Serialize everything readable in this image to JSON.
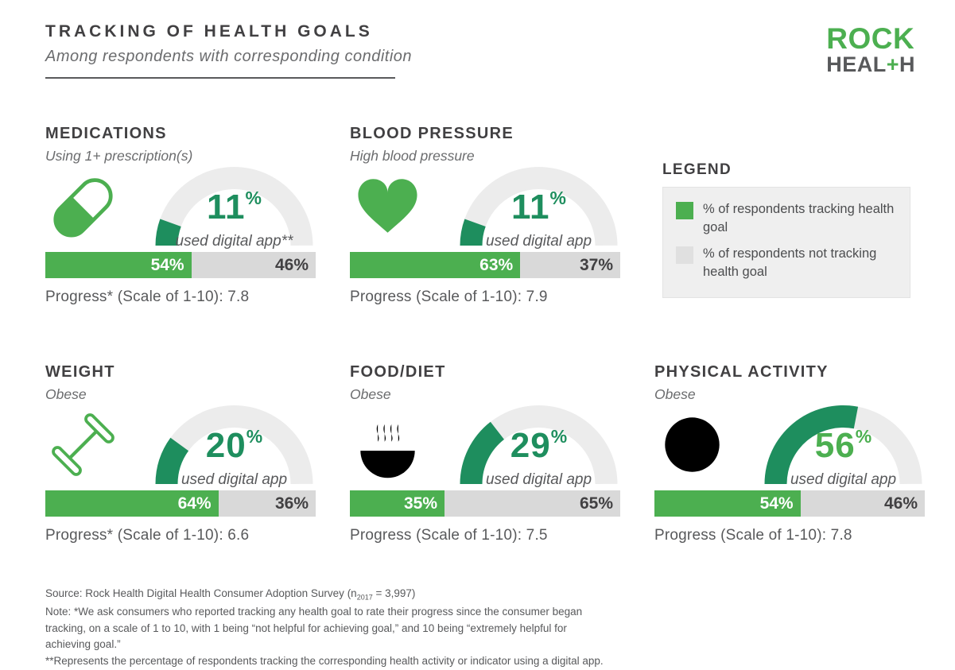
{
  "header": {
    "title": "TRACKING OF HEALTH GOALS",
    "subtitle": "Among respondents with corresponding condition"
  },
  "logo": {
    "top": "ROCK",
    "bottom_pre": "HEAL",
    "bottom_plus": "+",
    "bottom_post": "H"
  },
  "colors": {
    "green": "#4caf50",
    "gauge_fill": "#1e8e5e",
    "gauge_track": "#ececec",
    "bar_gray": "#d9d9d9"
  },
  "legend": {
    "title": "LEGEND",
    "items": [
      {
        "label": "% of respondents tracking health goal",
        "color": "#4caf50"
      },
      {
        "label": "% of respondents not tracking health goal",
        "color": "#e0e0e0"
      }
    ]
  },
  "panels": [
    {
      "title": "MEDICATIONS",
      "subtitle": "Using 1+ prescription(s)",
      "icon": "pill-icon",
      "gauge_pct": 11,
      "gauge_value": "11",
      "gauge_unit": "%",
      "caption": "used digital app**",
      "accent": "#1e8e5e",
      "bar_tracking_pct": 54,
      "bar_tracking_label": "54%",
      "bar_not_label": "46%",
      "progress": "Progress* (Scale of 1-10): 7.8"
    },
    {
      "title": "BLOOD PRESSURE",
      "subtitle": "High blood pressure",
      "icon": "heart-icon",
      "gauge_pct": 11,
      "gauge_value": "11",
      "gauge_unit": "%",
      "caption": "used digital app",
      "accent": "#1e8e5e",
      "bar_tracking_pct": 63,
      "bar_tracking_label": "63%",
      "bar_not_label": "37%",
      "progress": "Progress (Scale of 1-10): 7.9"
    },
    {
      "title": "WEIGHT",
      "subtitle": "Obese",
      "icon": "dumbbell-icon",
      "gauge_pct": 20,
      "gauge_value": "20",
      "gauge_unit": "%",
      "caption": "used digital app",
      "accent": "#1e8e5e",
      "bar_tracking_pct": 64,
      "bar_tracking_label": "64%",
      "bar_not_label": "36%",
      "progress": "Progress* (Scale of 1-10): 6.6"
    },
    {
      "title": "FOOD/DIET",
      "subtitle": "Obese",
      "icon": "bowl-steam-icon",
      "gauge_pct": 29,
      "gauge_value": "29",
      "gauge_unit": "%",
      "caption": "used digital app",
      "accent": "#1e8e5e",
      "bar_tracking_pct": 35,
      "bar_tracking_label": "35%",
      "bar_not_label": "65%",
      "progress": "Progress (Scale of 1-10): 7.5"
    },
    {
      "title": "PHYSICAL ACTIVITY",
      "subtitle": "Obese",
      "icon": "basketball-icon",
      "gauge_pct": 56,
      "gauge_value": "56",
      "gauge_unit": "%",
      "caption": "used digital app",
      "accent": "#4caf50",
      "bar_tracking_pct": 54,
      "bar_tracking_label": "54%",
      "bar_not_label": "46%",
      "progress": "Progress (Scale of 1-10): 7.8"
    }
  ],
  "footer": {
    "source_prefix": "Source: Rock Health Digital Health Consumer Adoption Survey (n",
    "source_sub": "2017",
    "source_suffix": " = 3,997)",
    "note": "Note: *We ask consumers who reported tracking any health goal to rate their progress since the consumer began tracking, on a scale of 1 to 10, with 1 being “not helpful for achieving goal,” and 10 being “extremely helpful for achieving goal.”",
    "note2": "**Represents the percentage of respondents tracking the corresponding health activity or indicator using a digital app."
  },
  "chart_data": {
    "type": "table",
    "title": "Tracking of Health Goals",
    "subtitle": "Among respondents with corresponding condition",
    "categories": [
      "Medications",
      "Blood Pressure",
      "Weight",
      "Food/Diet",
      "Physical Activity"
    ],
    "conditions": [
      "Using 1+ prescription(s)",
      "High blood pressure",
      "Obese",
      "Obese",
      "Obese"
    ],
    "series": [
      {
        "name": "% used digital app (gauge)",
        "values": [
          11,
          11,
          20,
          29,
          56
        ]
      },
      {
        "name": "% of respondents tracking health goal",
        "values": [
          54,
          63,
          64,
          35,
          54
        ]
      },
      {
        "name": "% of respondents not tracking health goal",
        "values": [
          46,
          37,
          36,
          65,
          46
        ]
      },
      {
        "name": "Progress (Scale of 1-10)",
        "values": [
          7.8,
          7.9,
          6.6,
          7.5,
          7.8
        ]
      }
    ],
    "legend_position": "right of first row",
    "gauge_range": [
      0,
      100
    ]
  }
}
